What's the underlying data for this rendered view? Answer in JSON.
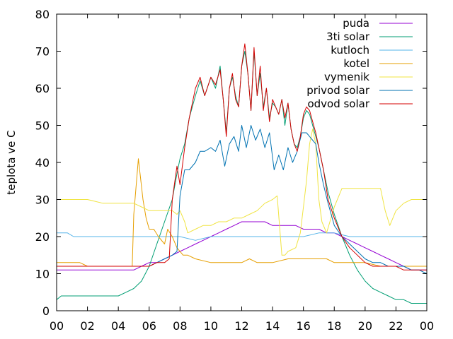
{
  "chart_data": {
    "type": "line",
    "title": "",
    "xlabel": "",
    "ylabel": "teplota ve C",
    "xlim": [
      0,
      24
    ],
    "ylim": [
      0,
      80
    ],
    "x_tick_labels": [
      "00",
      "02",
      "04",
      "06",
      "08",
      "10",
      "12",
      "14",
      "16",
      "18",
      "20",
      "22",
      "00"
    ],
    "y_ticks": [
      0,
      10,
      20,
      30,
      40,
      50,
      60,
      70,
      80
    ],
    "grid": false,
    "legend_position": "top-right",
    "series": [
      {
        "name": "puda",
        "color": "#9400d3",
        "x": [
          0,
          1,
          2,
          3,
          4,
          5,
          5.5,
          6,
          6.5,
          7,
          7.5,
          8,
          8.5,
          9,
          9.5,
          10,
          10.5,
          11,
          11.5,
          12,
          12.5,
          13,
          13.5,
          14,
          14.5,
          15,
          15.5,
          16,
          16.5,
          17,
          17.5,
          18,
          18.5,
          19,
          19.5,
          20,
          20.5,
          21,
          21.5,
          22,
          22.5,
          23,
          23.5,
          24
        ],
        "y": [
          11,
          11,
          11,
          11,
          11,
          11,
          12,
          13,
          13,
          14,
          15,
          16,
          17,
          18,
          19,
          20,
          21,
          22,
          23,
          24,
          24,
          24,
          24,
          23,
          23,
          23,
          23,
          22,
          22,
          22,
          21,
          21,
          20,
          19,
          18,
          17,
          16,
          15,
          14,
          13,
          12,
          11,
          11,
          11
        ]
      },
      {
        "name": "3ti solar",
        "color": "#009e73",
        "x": [
          0,
          0.3,
          1,
          2,
          3,
          4,
          4.5,
          5,
          5.5,
          6,
          6.5,
          7,
          7.5,
          7.8,
          8,
          8.3,
          8.6,
          9,
          9.3,
          9.6,
          10,
          10.3,
          10.6,
          10.8,
          11,
          11.2,
          11.4,
          11.6,
          11.8,
          12,
          12.2,
          12.4,
          12.6,
          12.8,
          13,
          13.2,
          13.4,
          13.6,
          13.8,
          14,
          14.2,
          14.4,
          14.6,
          14.8,
          15,
          15.2,
          15.4,
          15.6,
          15.8,
          16,
          16.2,
          16.4,
          16.6,
          16.8,
          17,
          17.3,
          17.6,
          18,
          18.5,
          19,
          19.5,
          20,
          20.5,
          21,
          21.5,
          22,
          22.5,
          23,
          23.5,
          24
        ],
        "y": [
          3,
          4,
          4,
          4,
          4,
          4,
          5,
          6,
          8,
          12,
          18,
          24,
          30,
          37,
          41,
          45,
          52,
          58,
          62,
          58,
          63,
          60,
          66,
          57,
          48,
          60,
          63,
          58,
          55,
          66,
          70,
          64,
          54,
          70,
          58,
          64,
          55,
          60,
          52,
          56,
          55,
          53,
          57,
          50,
          56,
          49,
          45,
          44,
          47,
          52,
          54,
          53,
          50,
          47,
          44,
          38,
          32,
          26,
          20,
          15,
          11,
          8,
          6,
          5,
          4,
          3,
          3,
          2,
          2,
          2
        ]
      },
      {
        "name": "kutloch",
        "color": "#56b4e9",
        "x": [
          0,
          0.7,
          1.1,
          2,
          3,
          4,
          5,
          6,
          7,
          8,
          9,
          10,
          11,
          12,
          13,
          14,
          15,
          16,
          17,
          18,
          19,
          20,
          21,
          21.5,
          22,
          23,
          24
        ],
        "y": [
          21,
          21,
          20,
          20,
          20,
          20,
          20,
          20,
          20,
          20,
          19,
          20,
          20,
          20,
          20,
          20,
          20,
          20,
          21,
          21,
          20,
          20,
          20,
          20,
          20,
          20,
          20
        ]
      },
      {
        "name": "kotel",
        "color": "#e69f00",
        "x": [
          0,
          1.5,
          2,
          3,
          4,
          4.9,
          5,
          5.3,
          5.6,
          5.8,
          6,
          6.3,
          6.6,
          7,
          7.2,
          7.5,
          7.8,
          8,
          8.2,
          8.5,
          9,
          10,
          11,
          11.5,
          12,
          12.5,
          13,
          14,
          15,
          16,
          17,
          17.5,
          18,
          19,
          20,
          21,
          22,
          23,
          24
        ],
        "y": [
          13,
          13,
          12,
          12,
          12,
          12,
          26,
          41,
          30,
          25,
          22,
          22,
          20,
          18,
          22,
          20,
          17,
          16,
          15,
          15,
          14,
          13,
          13,
          13,
          13,
          14,
          13,
          13,
          14,
          14,
          14,
          14,
          13,
          13,
          13,
          12,
          12,
          12,
          12
        ]
      },
      {
        "name": "vymenik",
        "color": "#f0e442",
        "x": [
          0,
          1,
          2,
          3,
          4,
          5,
          5.5,
          6,
          6.5,
          7,
          7.5,
          7.8,
          8,
          8.3,
          8.5,
          9,
          9.5,
          10,
          10.5,
          11,
          11.5,
          12,
          12.5,
          13,
          13.5,
          14,
          14.3,
          14.6,
          14.8,
          15,
          15.5,
          15.8,
          16,
          16.2,
          16.4,
          16.6,
          16.8,
          17,
          17.2,
          17.5,
          18,
          18.5,
          19,
          20,
          21,
          21.3,
          21.6,
          22,
          22.5,
          23,
          24
        ],
        "y": [
          30,
          30,
          30,
          29,
          29,
          29,
          28,
          27,
          27,
          27,
          27,
          26,
          27,
          24,
          21,
          22,
          23,
          23,
          24,
          24,
          25,
          25,
          26,
          27,
          29,
          30,
          31,
          15,
          15,
          16,
          17,
          21,
          28,
          35,
          45,
          49,
          45,
          30,
          24,
          21,
          28,
          33,
          33,
          33,
          33,
          27,
          23,
          27,
          29,
          30,
          30
        ]
      },
      {
        "name": "privod solar",
        "color": "#0072b2",
        "x": [
          0,
          1,
          2,
          3,
          4,
          5,
          5.5,
          6,
          6.5,
          7,
          7.5,
          7.8,
          8,
          8.3,
          8.6,
          9,
          9.3,
          9.6,
          10,
          10.3,
          10.6,
          10.9,
          11.2,
          11.5,
          11.8,
          12,
          12.3,
          12.6,
          12.9,
          13.2,
          13.5,
          13.8,
          14.1,
          14.4,
          14.7,
          15,
          15.3,
          15.6,
          15.9,
          16.2,
          16.4,
          16.6,
          16.8,
          17,
          17.3,
          17.6,
          18,
          18.5,
          19,
          19.5,
          20,
          20.5,
          21,
          21.5,
          22,
          22.5,
          23,
          23.5,
          24
        ],
        "y": [
          12,
          12,
          12,
          12,
          12,
          12,
          12,
          12,
          13,
          14,
          15,
          16,
          31,
          38,
          38,
          40,
          43,
          43,
          44,
          43,
          46,
          39,
          45,
          47,
          43,
          50,
          44,
          50,
          46,
          49,
          44,
          48,
          38,
          42,
          38,
          44,
          40,
          43,
          48,
          48,
          47,
          46,
          45,
          40,
          34,
          29,
          23,
          20,
          18,
          16,
          14,
          13,
          13,
          12,
          12,
          12,
          11,
          11,
          10
        ]
      },
      {
        "name": "odvod solar",
        "color": "#d40000",
        "x": [
          0,
          1,
          2,
          3,
          4,
          5,
          5.5,
          6,
          6.5,
          7,
          7.3,
          7.5,
          7.8,
          8,
          8.3,
          8.6,
          9,
          9.3,
          9.6,
          10,
          10.3,
          10.6,
          10.8,
          11,
          11.2,
          11.4,
          11.6,
          11.8,
          12,
          12.2,
          12.4,
          12.6,
          12.8,
          13,
          13.2,
          13.4,
          13.6,
          13.8,
          14,
          14.2,
          14.4,
          14.6,
          14.8,
          15,
          15.2,
          15.4,
          15.6,
          15.8,
          16,
          16.2,
          16.4,
          16.6,
          16.8,
          17,
          17.3,
          17.6,
          18,
          18.5,
          19,
          19.5,
          20,
          20.5,
          21,
          21.5,
          22,
          22.5,
          23,
          23.5,
          24
        ],
        "y": [
          12,
          12,
          12,
          12,
          12,
          12,
          12,
          12,
          13,
          13,
          14,
          30,
          39,
          34,
          44,
          52,
          60,
          63,
          58,
          63,
          61,
          65,
          57,
          47,
          60,
          64,
          57,
          55,
          66,
          72,
          64,
          54,
          71,
          58,
          66,
          54,
          60,
          51,
          57,
          55,
          53,
          57,
          52,
          56,
          49,
          45,
          43,
          47,
          53,
          55,
          54,
          51,
          48,
          44,
          38,
          30,
          25,
          20,
          17,
          15,
          13,
          12,
          12,
          12,
          12,
          11,
          11,
          11,
          11
        ]
      }
    ]
  }
}
